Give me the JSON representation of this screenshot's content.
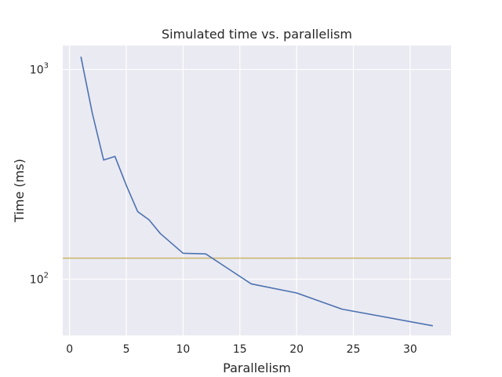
{
  "chart_data": {
    "type": "line",
    "title": "Simulated time vs. parallelism",
    "xlabel": "Parallelism",
    "ylabel": "Time (ms)",
    "xlim": [
      -0.6,
      33.6
    ],
    "ylim": [
      54,
      1300
    ],
    "yscale": "log",
    "grid": true,
    "background": "#eaeaf2",
    "x_ticks": [
      0,
      5,
      10,
      15,
      20,
      25,
      30
    ],
    "y_ticks": [
      {
        "value": 100,
        "base": "10",
        "exp": "2"
      },
      {
        "value": 1000,
        "base": "10",
        "exp": "3"
      }
    ],
    "series": [
      {
        "color": "#4c72b0",
        "x": [
          1,
          2,
          3,
          4,
          5,
          6,
          7,
          8,
          10,
          12,
          14,
          16,
          20,
          24,
          32
        ],
        "values": [
          1150,
          620,
          370,
          385,
          280,
          210,
          192,
          165,
          133,
          132,
          112,
          95,
          86,
          72,
          60
        ]
      }
    ],
    "hlines": [
      {
        "value": 126,
        "color": "#ccb974"
      }
    ]
  }
}
